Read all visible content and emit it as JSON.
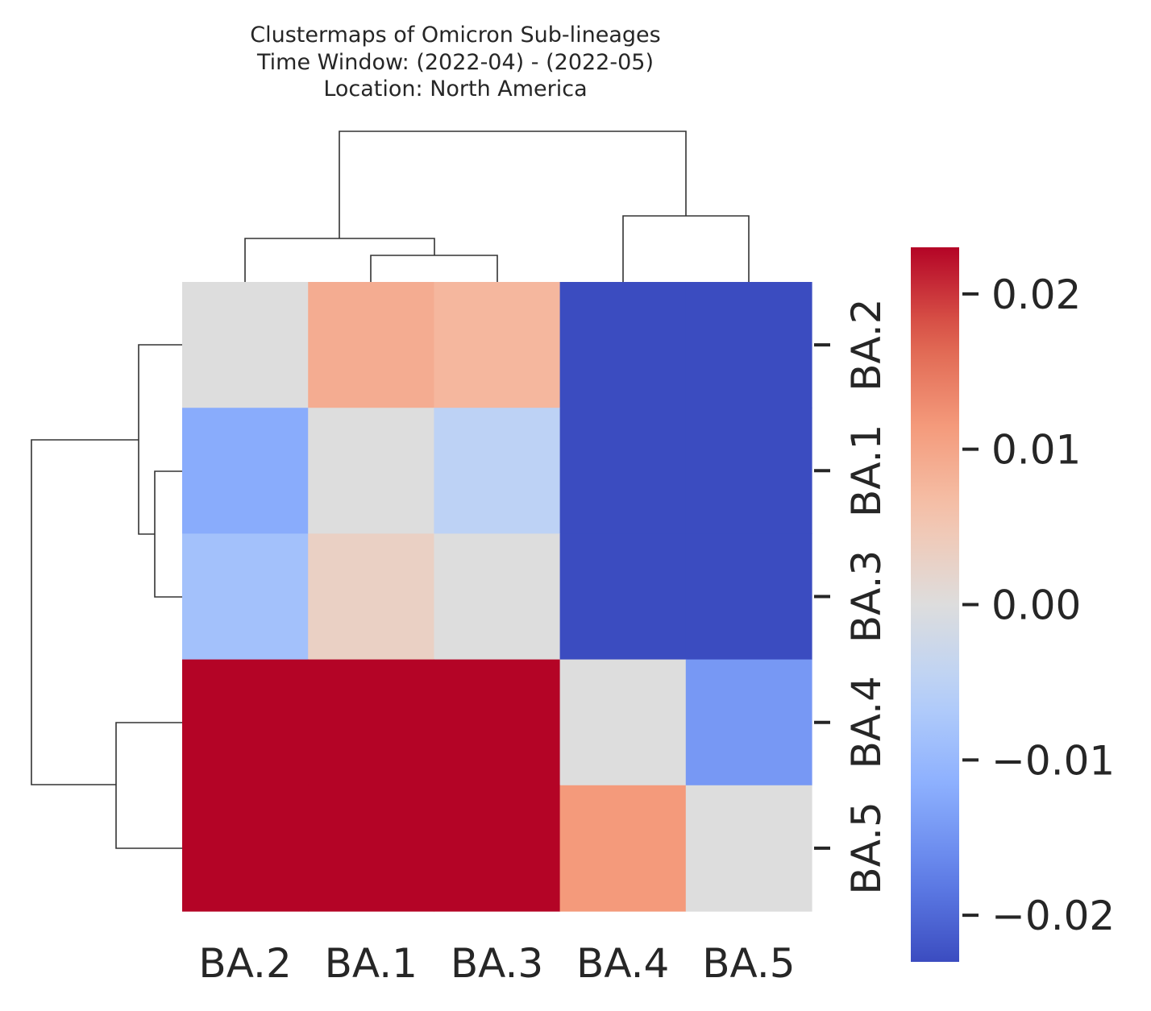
{
  "chart_data": {
    "type": "heatmap",
    "title_lines": [
      "Clustermaps of Omicron Sub-lineages",
      "Time Window: (2022-04) - (2022-05)",
      "Location: North America"
    ],
    "row_labels": [
      "BA.2",
      "BA.1",
      "BA.3",
      "BA.4",
      "BA.5"
    ],
    "col_labels": [
      "BA.2",
      "BA.1",
      "BA.3",
      "BA.4",
      "BA.5"
    ],
    "values": [
      [
        0.0,
        0.009,
        0.0075,
        -0.023,
        -0.023
      ],
      [
        -0.012,
        0.0,
        -0.005,
        -0.023,
        -0.023
      ],
      [
        -0.0085,
        0.003,
        0.0,
        -0.023,
        -0.023
      ],
      [
        0.023,
        0.023,
        0.023,
        0.0,
        -0.0145
      ],
      [
        0.023,
        0.023,
        0.023,
        0.0115,
        0.0
      ]
    ],
    "colorbar": {
      "colormap": "coolwarm",
      "vmin": -0.023,
      "vmax": 0.023,
      "ticks": [
        0.02,
        0.01,
        0.0,
        -0.01,
        -0.02
      ],
      "tick_labels": [
        "0.02",
        "0.01",
        "0.00",
        "−0.01",
        "−0.02"
      ]
    },
    "row_dendrogram": "((BA.2,(BA.1,BA.3)),(BA.4,BA.5))",
    "col_dendrogram": "((BA.2,(BA.1,BA.3)),(BA.4,BA.5))"
  }
}
